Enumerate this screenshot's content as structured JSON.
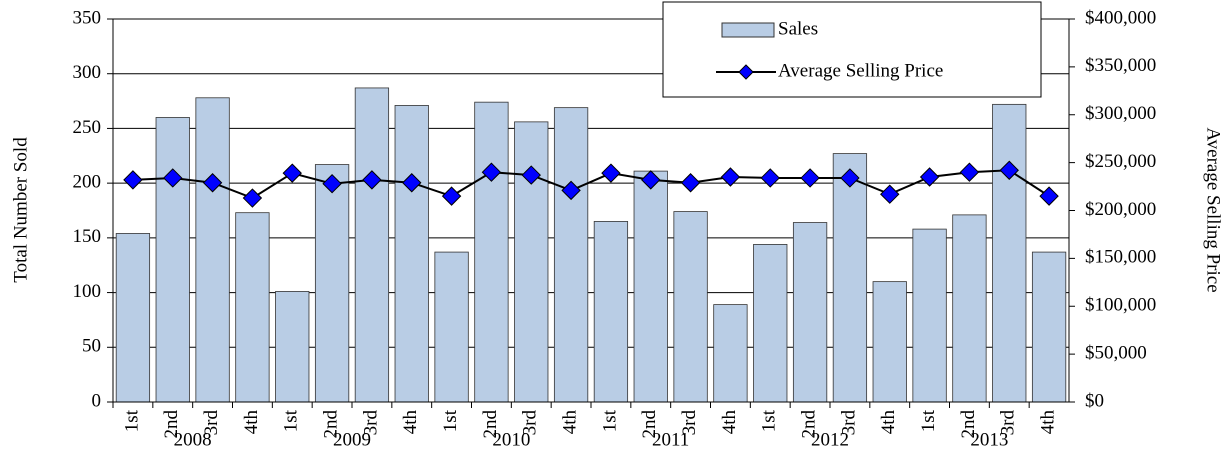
{
  "chart_data": {
    "type": "bar_line",
    "categories": [
      "1st",
      "2nd",
      "3rd",
      "4th",
      "1st",
      "2nd",
      "3rd",
      "4th",
      "1st",
      "2nd",
      "3rd",
      "4th",
      "1st",
      "2nd",
      "3rd",
      "4th",
      "1st",
      "2nd",
      "3rd",
      "4th",
      "1st",
      "2nd",
      "3rd",
      "4th"
    ],
    "groups": [
      "2008",
      "2009",
      "2010",
      "2011",
      "2012",
      "2013"
    ],
    "y_label": "Total Number Sold",
    "y2_label": "Average Selling Price",
    "series": [
      {
        "name": "Sales",
        "type": "bar",
        "color": "#b9cde5",
        "axis": "y",
        "values": [
          154,
          260,
          278,
          173,
          101,
          217,
          287,
          271,
          137,
          274,
          256,
          269,
          165,
          211,
          174,
          89,
          144,
          164,
          227,
          110,
          158,
          171,
          272,
          137
        ]
      },
      {
        "name": "Average Selling Price",
        "type": "line",
        "color": "#000000",
        "marker_color": "#0000ff",
        "axis": "y2",
        "values": [
          232000,
          234000,
          229000,
          213000,
          239000,
          228000,
          232000,
          229000,
          215000,
          240000,
          237000,
          221000,
          239000,
          232000,
          229000,
          235000,
          234000,
          234000,
          234000,
          217000,
          235000,
          240000,
          242000,
          215000
        ]
      }
    ],
    "ylim": [
      0,
      350
    ],
    "yticks": [
      0,
      50,
      100,
      150,
      200,
      250,
      300,
      350
    ],
    "y2lim": [
      0,
      400000
    ],
    "y2ticks": [
      {
        "value": 0,
        "label": "$0"
      },
      {
        "value": 50000,
        "label": "$50,000"
      },
      {
        "value": 100000,
        "label": "$100,000"
      },
      {
        "value": 150000,
        "label": "$150,000"
      },
      {
        "value": 200000,
        "label": "$200,000"
      },
      {
        "value": 250000,
        "label": "$250,000"
      },
      {
        "value": 300000,
        "label": "$300,000"
      },
      {
        "value": 350000,
        "label": "$350,000"
      },
      {
        "value": 400000,
        "label": "$400,000"
      }
    ],
    "grid": true,
    "legend": "upper right"
  }
}
